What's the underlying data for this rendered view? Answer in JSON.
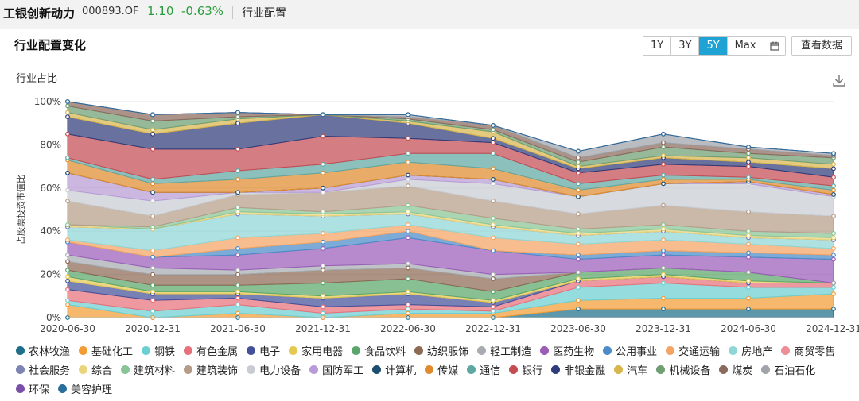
{
  "header": {
    "fund_name": "工银创新动力",
    "fund_code": "000893.OF",
    "nav": "1.10",
    "change": "-0.63%",
    "tab": "行业配置"
  },
  "card": {
    "title": "行业配置变化",
    "ranges": [
      "1Y",
      "3Y",
      "5Y",
      "Max"
    ],
    "active_range": "5Y",
    "view_data_label": "查看数据",
    "chart_subtitle": "行业占比"
  },
  "icons": {
    "calendar": "calendar-icon",
    "download": "download-icon"
  },
  "chart_data": {
    "type": "area",
    "stacked": true,
    "xlabel": "",
    "ylabel": "占股票投资市值比",
    "x": [
      "2020-06-30",
      "2020-12-31",
      "2021-06-30",
      "2021-12-31",
      "2022-06-30",
      "2022-12-31",
      "2023-06-30",
      "2023-12-31",
      "2024-06-30",
      "2024-12-31"
    ],
    "ylim": [
      0,
      100
    ],
    "yticks": [
      "0%",
      "20%",
      "40%",
      "60%",
      "80%",
      "100%"
    ],
    "grid": true,
    "legend_position": "bottom",
    "series": [
      {
        "name": "农林牧渔",
        "color": "#1f6f8b",
        "values": [
          0,
          0,
          0,
          0,
          0,
          0,
          4,
          4,
          4,
          4
        ]
      },
      {
        "name": "基础化工",
        "color": "#f39c34",
        "values": [
          6,
          0,
          2,
          0,
          2,
          2,
          4,
          5,
          5,
          7
        ]
      },
      {
        "name": "钢铁",
        "color": "#6ccfd1",
        "values": [
          2,
          3,
          4,
          2,
          2,
          1,
          6,
          7,
          5,
          3
        ]
      },
      {
        "name": "有色金属",
        "color": "#e8707a",
        "values": [
          5,
          5,
          3,
          3,
          2,
          2,
          3,
          3,
          2,
          2
        ]
      },
      {
        "name": "电子",
        "color": "#44509a",
        "values": [
          4,
          3,
          2,
          4,
          5,
          2,
          0,
          0,
          0,
          0
        ]
      },
      {
        "name": "家用电器",
        "color": "#e5c852",
        "values": [
          2,
          1,
          1,
          1,
          1,
          1,
          1,
          1,
          1,
          0
        ]
      },
      {
        "name": "食品饮料",
        "color": "#5aa66a",
        "values": [
          3,
          3,
          3,
          6,
          6,
          4,
          3,
          3,
          4,
          0
        ]
      },
      {
        "name": "纺织服饰",
        "color": "#8c6a55",
        "values": [
          4,
          5,
          5,
          6,
          5,
          6,
          0,
          0,
          0,
          0
        ]
      },
      {
        "name": "轻工制造",
        "color": "#a6acb2",
        "values": [
          3,
          3,
          2,
          2,
          2,
          2,
          0,
          0,
          0,
          0
        ]
      },
      {
        "name": "医药生物",
        "color": "#9a5db8",
        "values": [
          6,
          5,
          7,
          8,
          12,
          11,
          6,
          6,
          7,
          11
        ]
      },
      {
        "name": "公用事业",
        "color": "#4a8bc8",
        "values": [
          0,
          0,
          3,
          3,
          3,
          0,
          2,
          2,
          2,
          2
        ]
      },
      {
        "name": "交通运输",
        "color": "#f5a462",
        "values": [
          1,
          3,
          5,
          4,
          3,
          6,
          5,
          5,
          4,
          3
        ]
      },
      {
        "name": "房地产",
        "color": "#8fd6d6",
        "values": [
          6,
          10,
          11,
          8,
          5,
          5,
          4,
          4,
          3,
          4
        ]
      },
      {
        "name": "商贸零售",
        "color": "#ec8d98",
        "values": [
          0,
          0,
          0,
          0,
          0,
          0,
          0,
          0,
          0,
          0
        ]
      },
      {
        "name": "社会服务",
        "color": "#7b84b3",
        "values": [
          0,
          0,
          0,
          0,
          0,
          0,
          0,
          0,
          0,
          0
        ]
      },
      {
        "name": "综合",
        "color": "#ead57a",
        "values": [
          1,
          0,
          1,
          1,
          1,
          1,
          1,
          1,
          1,
          1
        ]
      },
      {
        "name": "建筑材料",
        "color": "#88c596",
        "values": [
          0,
          1,
          2,
          1,
          3,
          3,
          2,
          2,
          2,
          2
        ]
      },
      {
        "name": "建筑装饰",
        "color": "#b59c88",
        "values": [
          11,
          5,
          6,
          9,
          9,
          8,
          7,
          9,
          9,
          8
        ]
      },
      {
        "name": "电力设备",
        "color": "#c8ccd2",
        "values": [
          5,
          7,
          1,
          0,
          3,
          8,
          8,
          10,
          13,
          9
        ]
      },
      {
        "name": "国防军工",
        "color": "#b89bd6",
        "values": [
          8,
          4,
          0,
          2,
          2,
          2,
          0,
          0,
          1,
          1
        ]
      },
      {
        "name": "计算机",
        "color": "#1d4e6f",
        "values": [
          0,
          0,
          0,
          0,
          0,
          0,
          0,
          0,
          0,
          0
        ]
      },
      {
        "name": "传媒",
        "color": "#e08c2e",
        "values": [
          6,
          4,
          6,
          7,
          6,
          5,
          3,
          2,
          1,
          2
        ]
      },
      {
        "name": "通信",
        "color": "#5fa7a2",
        "values": [
          1,
          2,
          4,
          4,
          4,
          7,
          3,
          2,
          1,
          2
        ]
      },
      {
        "name": "银行",
        "color": "#c44c53",
        "values": [
          11,
          14,
          10,
          13,
          7,
          5,
          5,
          5,
          5,
          4
        ]
      },
      {
        "name": "非银金融",
        "color": "#2f3b7a",
        "values": [
          8,
          7,
          12,
          10,
          7,
          2,
          2,
          3,
          2,
          4
        ]
      },
      {
        "name": "汽车",
        "color": "#d8b64c",
        "values": [
          2,
          2,
          2,
          0,
          1,
          3,
          1,
          1,
          2,
          2
        ]
      },
      {
        "name": "机械设备",
        "color": "#6e9e72",
        "values": [
          3,
          4,
          1,
          0,
          1,
          1,
          2,
          4,
          2,
          3
        ]
      },
      {
        "name": "煤炭",
        "color": "#8a6a5d",
        "values": [
          2,
          3,
          2,
          0,
          1,
          2,
          2,
          2,
          2,
          1
        ]
      },
      {
        "name": "石油石化",
        "color": "#9ea4aa",
        "values": [
          0,
          0,
          0,
          0,
          1,
          0,
          3,
          4,
          1,
          1
        ]
      },
      {
        "name": "环保",
        "color": "#7a4fa8",
        "values": [
          0,
          0,
          0,
          0,
          0,
          0,
          0,
          0,
          0,
          0
        ]
      },
      {
        "name": "美容护理",
        "color": "#2a6f9b",
        "values": [
          0,
          0,
          0,
          0,
          0,
          0,
          0,
          0,
          0,
          0
        ]
      }
    ]
  }
}
